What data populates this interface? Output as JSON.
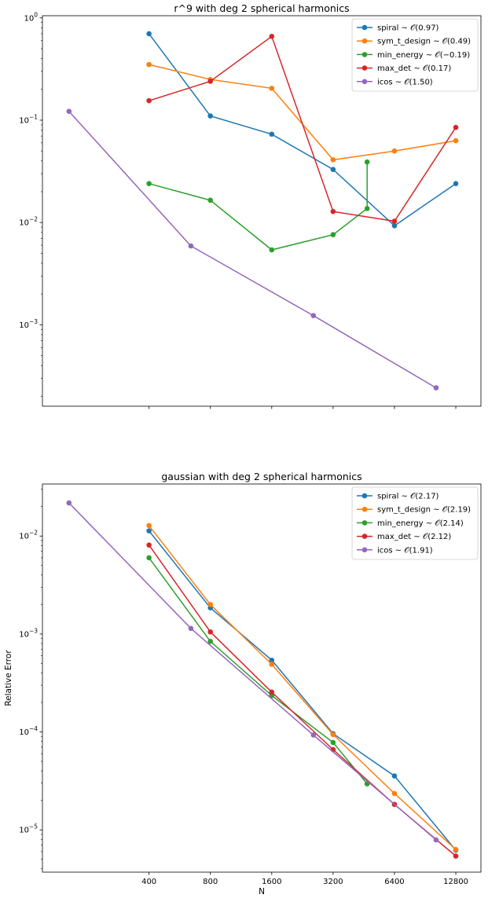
{
  "chart_data": [
    {
      "type": "line",
      "title": "r^9 with deg 2 spherical harmonics",
      "xlabel": "",
      "ylabel": "",
      "xscale": "log",
      "yscale": "log",
      "xlim": [
        120,
        17000
      ],
      "ylim": [
        0.00016,
        1.05
      ],
      "yticks": [
        0.001,
        0.01,
        0.1,
        1
      ],
      "ytick_labels": [
        "10^-3",
        "10^-2",
        "10^-1",
        "10^0"
      ],
      "grid": false,
      "legend_position": "top-right",
      "series": [
        {
          "name": "spiral ~ 𝒪(0.97)",
          "color": "#1f77b4",
          "x": [
            400,
            800,
            1600,
            3200,
            6400,
            12800
          ],
          "y": [
            0.7,
            0.11,
            0.073,
            0.033,
            0.0093,
            0.024
          ]
        },
        {
          "name": "sym_t_design ~ 𝒪(0.49)",
          "color": "#ff7f0e",
          "x": [
            400,
            800,
            1600,
            3200,
            6400,
            12800
          ],
          "y": [
            0.35,
            0.25,
            0.205,
            0.041,
            0.05,
            0.063
          ]
        },
        {
          "name": "min_energy ~ 𝒪(−0.19)",
          "color": "#2ca02c",
          "x": [
            400,
            800,
            1600,
            3200,
            4700,
            4700
          ],
          "y": [
            0.024,
            0.0165,
            0.0054,
            0.0076,
            0.0137,
            0.039
          ]
        },
        {
          "name": "max_det ~ 𝒪(0.17)",
          "color": "#d62728",
          "x": [
            400,
            800,
            1600,
            3200,
            6400,
            12800
          ],
          "y": [
            0.155,
            0.24,
            0.66,
            0.0128,
            0.0103,
            0.085
          ]
        },
        {
          "name": "icos ~ 𝒪(1.50)",
          "color": "#9467bd",
          "x": [
            162,
            642,
            2562,
            10242
          ],
          "y": [
            0.122,
            0.0059,
            0.00123,
            0.000242
          ]
        }
      ]
    },
    {
      "type": "line",
      "title": "gaussian with deg 2 spherical harmonics",
      "xlabel": "N",
      "ylabel": "Relative Error",
      "xscale": "log",
      "yscale": "log",
      "xlim": [
        120,
        17000
      ],
      "ylim": [
        3.7e-06,
        0.034
      ],
      "xticks": [
        400,
        800,
        1600,
        3200,
        6400,
        12800
      ],
      "xtick_labels": [
        "400",
        "800",
        "1600",
        "3200",
        "6400",
        "12800"
      ],
      "yticks": [
        1e-05,
        0.0001,
        0.001,
        0.01
      ],
      "ytick_labels": [
        "10^-5",
        "10^-4",
        "10^-3",
        "10^-2"
      ],
      "grid": false,
      "legend_position": "top-right",
      "series": [
        {
          "name": "spiral ~ 𝒪(2.17)",
          "color": "#1f77b4",
          "x": [
            400,
            800,
            1600,
            3200,
            6400,
            12800
          ],
          "y": [
            0.0113,
            0.00185,
            0.00054,
            9.6e-05,
            3.55e-05,
            6.2e-06
          ]
        },
        {
          "name": "sym_t_design ~ 𝒪(2.19)",
          "color": "#ff7f0e",
          "x": [
            400,
            800,
            1600,
            3200,
            6400,
            12800
          ],
          "y": [
            0.0128,
            0.002,
            0.00049,
            9.4e-05,
            2.35e-05,
            6.3e-06
          ]
        },
        {
          "name": "min_energy ~ 𝒪(2.14)",
          "color": "#2ca02c",
          "x": [
            400,
            800,
            1600,
            3200,
            4700
          ],
          "y": [
            0.006,
            0.00084,
            0.000235,
            7.8e-05,
            2.95e-05
          ]
        },
        {
          "name": "max_det ~ 𝒪(2.12)",
          "color": "#d62728",
          "x": [
            400,
            800,
            1600,
            3200,
            6400,
            12800
          ],
          "y": [
            0.0081,
            0.00105,
            0.000255,
            6.6e-05,
            1.82e-05,
            5.4e-06
          ]
        },
        {
          "name": "icos ~ 𝒪(1.91)",
          "color": "#9467bd",
          "x": [
            162,
            642,
            2562,
            10242
          ],
          "y": [
            0.0218,
            0.00114,
            9.3e-05,
            7.9e-06
          ]
        }
      ]
    }
  ]
}
